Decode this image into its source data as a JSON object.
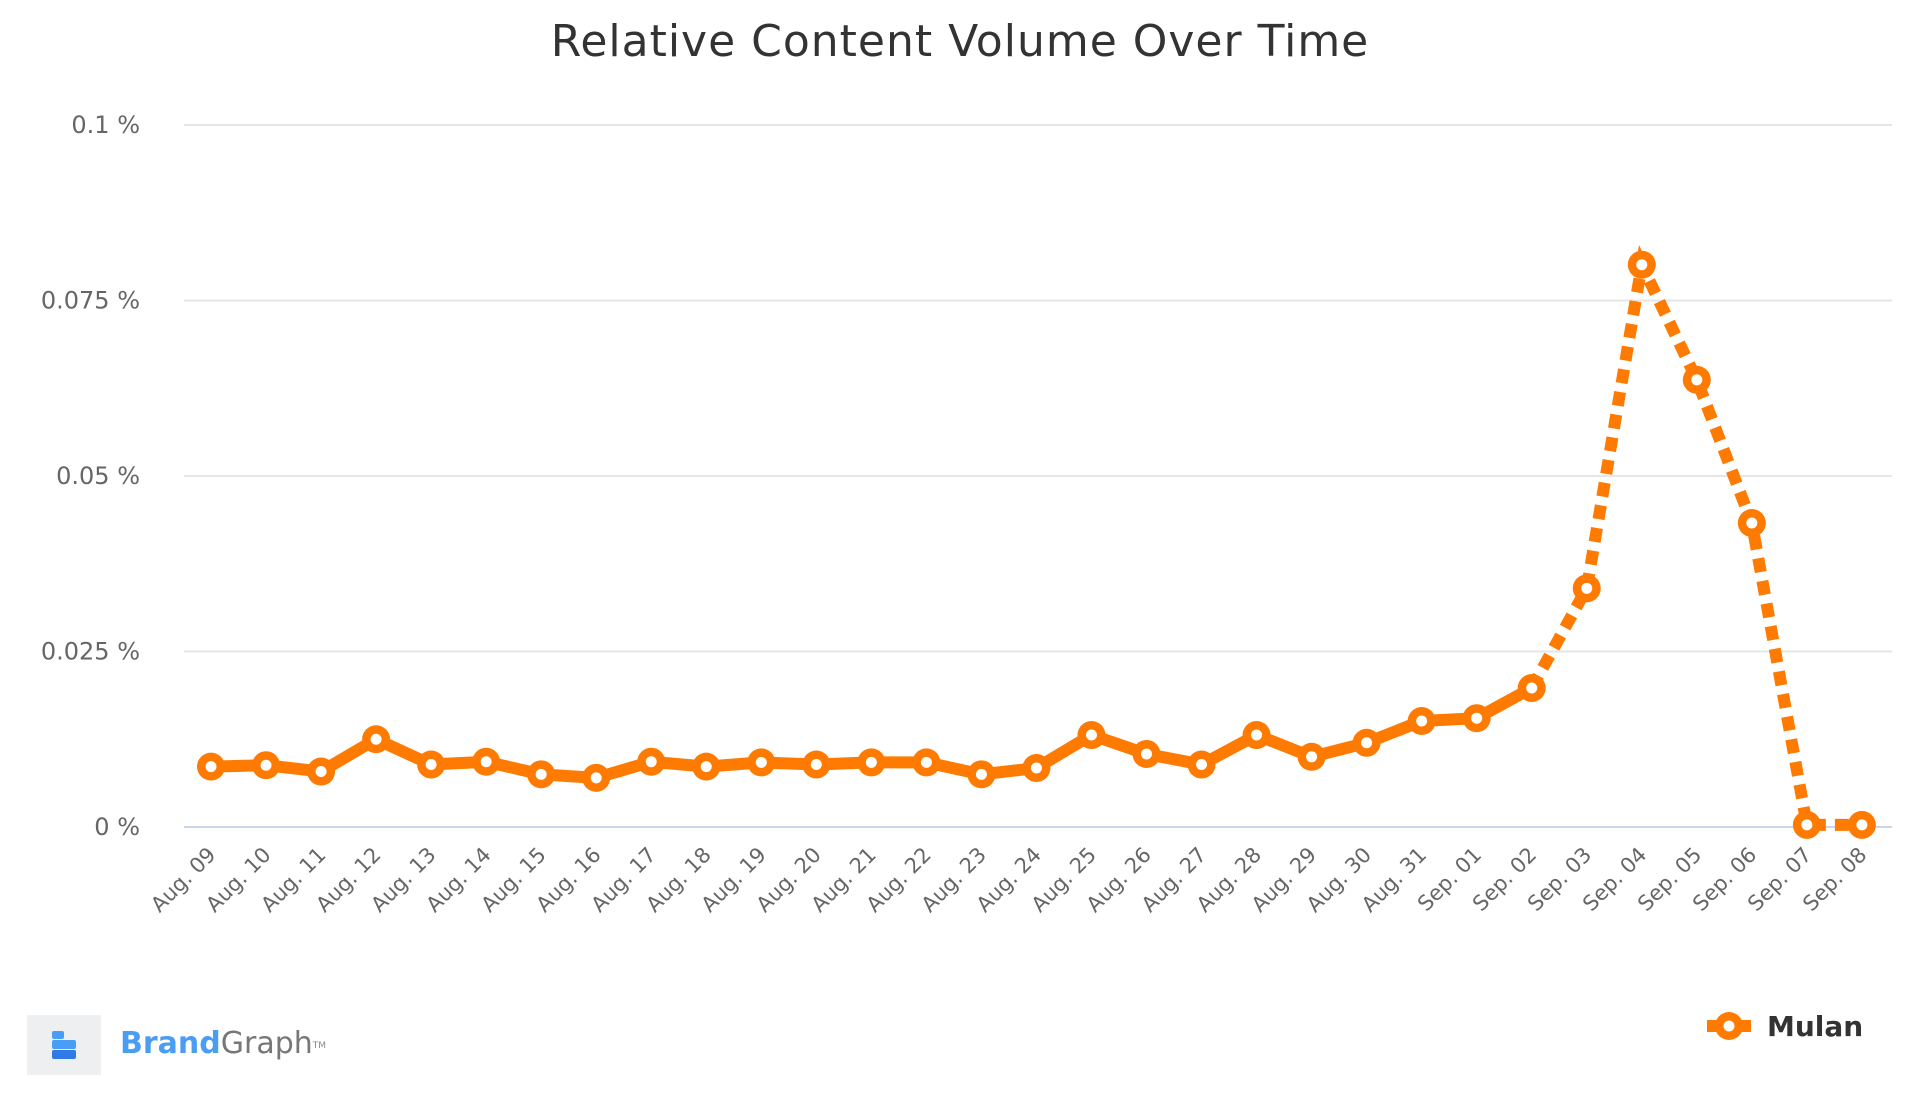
{
  "chart_data": {
    "type": "line",
    "title": "Relative Content Volume Over Time",
    "xlabel": "",
    "ylabel": "",
    "ylim": [
      0,
      0.1
    ],
    "yticks": [
      0,
      0.025,
      0.05,
      0.075,
      0.1
    ],
    "ytick_labels": [
      "0 %",
      "0.025 %",
      "0.05 %",
      "0.075 %",
      "0.1 %"
    ],
    "grid": true,
    "legend_position": "bottom-right",
    "categories": [
      "Aug. 09",
      "Aug. 10",
      "Aug. 11",
      "Aug. 12",
      "Aug. 13",
      "Aug. 14",
      "Aug. 15",
      "Aug. 16",
      "Aug. 17",
      "Aug. 18",
      "Aug. 19",
      "Aug. 20",
      "Aug. 21",
      "Aug. 22",
      "Aug. 23",
      "Aug. 24",
      "Aug. 25",
      "Aug. 26",
      "Aug. 27",
      "Aug. 28",
      "Aug. 29",
      "Aug. 30",
      "Aug. 31",
      "Sep. 01",
      "Sep. 02",
      "Sep. 03",
      "Sep. 04",
      "Sep. 05",
      "Sep. 06",
      "Sep. 07",
      "Sep. 08"
    ],
    "series": [
      {
        "name": "Mulan",
        "color": "#ff7a00",
        "values": [
          0.0086,
          0.0088,
          0.0079,
          0.0125,
          0.0089,
          0.0093,
          0.0075,
          0.007,
          0.0093,
          0.0086,
          0.0092,
          0.0089,
          0.0092,
          0.0092,
          0.0075,
          0.0084,
          0.0131,
          0.0104,
          0.0089,
          0.0131,
          0.01,
          0.012,
          0.0151,
          0.0155,
          0.0198,
          0.034,
          0.0801,
          0.0637,
          0.0433,
          0.0003,
          0.0003
        ],
        "solid_until_index": 24,
        "dashed_from_index": 24
      }
    ]
  },
  "title": "Relative Content Volume Over Time",
  "legend": {
    "items": [
      {
        "label": "Mulan",
        "icon": "line-circle-marker-icon",
        "color": "#ff7a00"
      }
    ]
  },
  "branding": {
    "brand": "Brand",
    "graph": "Graph",
    "tm": "TM",
    "icon": "brandgraph-logo-icon"
  },
  "colors": {
    "series": "#ff7a00",
    "grid": "#e6e6e6",
    "axis": "#ccd6eb",
    "label": "#666666",
    "title": "#333333",
    "logo_light": "#4a9df5",
    "logo_dark": "#2f7ae5"
  }
}
